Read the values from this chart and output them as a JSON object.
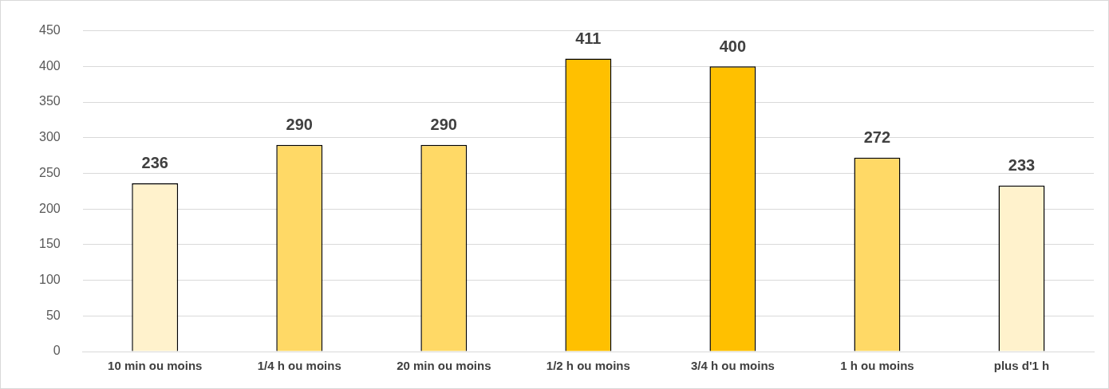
{
  "chart_data": {
    "type": "bar",
    "categories": [
      "10 min ou moins",
      "1/4 h ou moins",
      "20 min ou moins",
      "1/2 h ou moins",
      "3/4 h ou moins",
      "1 h ou moins",
      "plus d'1 h"
    ],
    "values": [
      236,
      290,
      290,
      411,
      400,
      272,
      233
    ],
    "colors": [
      "#fff2cc",
      "#ffd966",
      "#ffd966",
      "#ffc000",
      "#ffc000",
      "#ffd966",
      "#fff2cc"
    ],
    "ylim": [
      0,
      450
    ],
    "yticks": [
      0,
      50,
      100,
      150,
      200,
      250,
      300,
      350,
      400,
      450
    ],
    "grid": "y",
    "data_labels": true,
    "legend": false
  }
}
